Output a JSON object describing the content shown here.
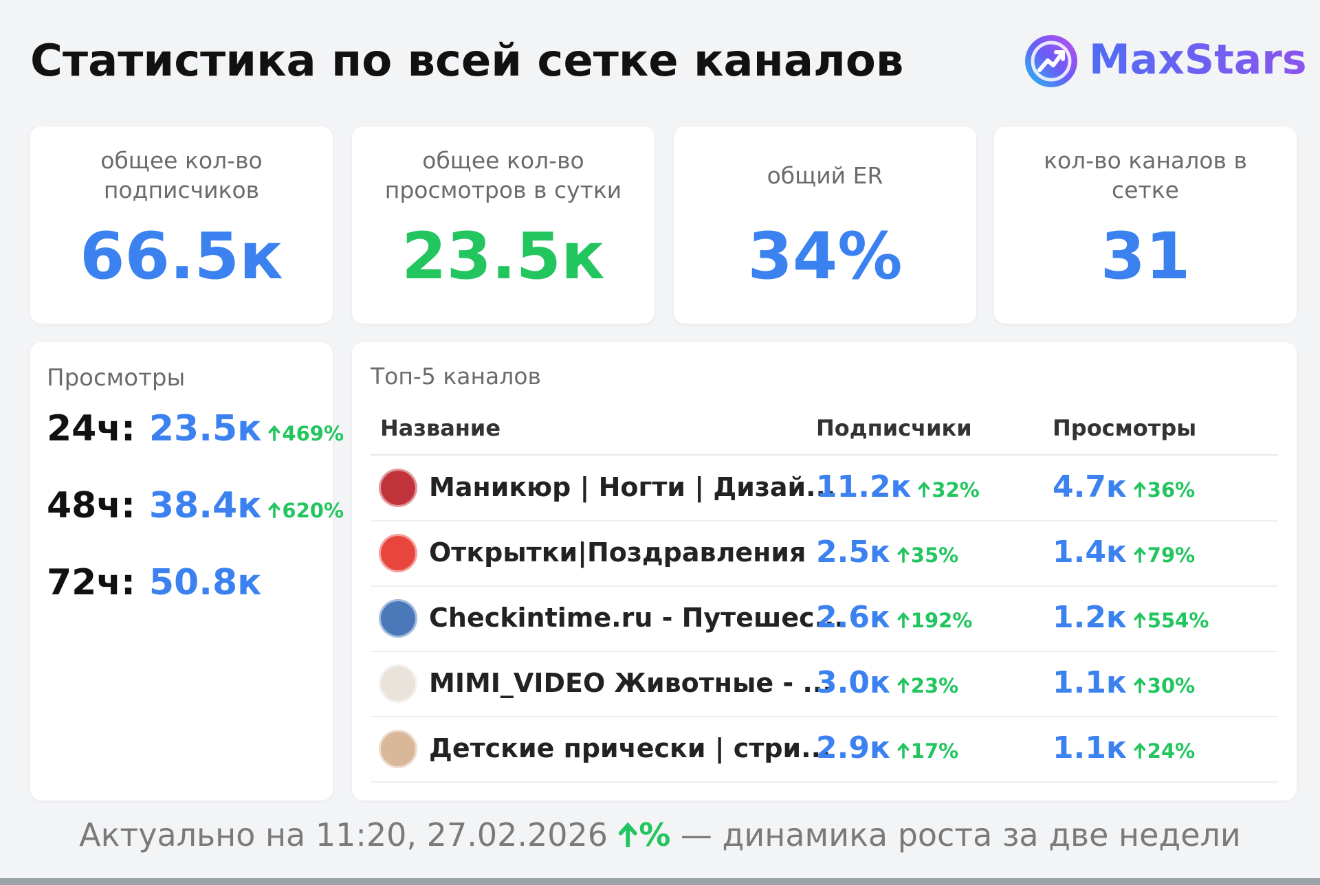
{
  "header": {
    "title": "Статистика по всей сетке каналов",
    "brand": "MaxStars"
  },
  "cards": [
    {
      "label": "общее кол-во подписчиков",
      "value": "66.5к"
    },
    {
      "label": "общее кол-во просмотров в сутки",
      "value": "23.5к"
    },
    {
      "label": "общий ER",
      "value": "34%"
    },
    {
      "label": "кол-во каналов в сетке",
      "value": "31"
    }
  ],
  "views": {
    "title": "Просмотры",
    "rows": [
      {
        "period": "24ч:",
        "value": "23.5к",
        "growth": "469%"
      },
      {
        "period": "48ч:",
        "value": "38.4к",
        "growth": "620%"
      },
      {
        "period": "72ч:",
        "value": "50.8к"
      }
    ]
  },
  "table": {
    "title": "Топ-5 каналов",
    "columns": [
      "Название",
      "Подписчики",
      "Просмотры"
    ],
    "rows": [
      {
        "name": "Маникюр | Ногти | Дизай...",
        "subscribers": "11.2к",
        "subscribers_growth": "32%",
        "views": "4.7к",
        "views_growth": "36%"
      },
      {
        "name": "Открытки|Поздравления",
        "subscribers": "2.5к",
        "subscribers_growth": "35%",
        "views": "1.4к",
        "views_growth": "79%"
      },
      {
        "name": "Checkintime.ru - Путешес...",
        "subscribers": "2.6к",
        "subscribers_growth": "192%",
        "views": "1.2к",
        "views_growth": "554%"
      },
      {
        "name": "MIMI_VIDEO Животные - ...",
        "subscribers": "3.0к",
        "subscribers_growth": "23%",
        "views": "1.1к",
        "views_growth": "30%"
      },
      {
        "name": "Детские прически | стри...",
        "subscribers": "2.9к",
        "subscribers_growth": "17%",
        "views": "1.1к",
        "views_growth": "24%"
      }
    ]
  },
  "footer": {
    "text": "Актуально на 11:20, 27.02.2026",
    "legend": "%",
    "note": "— динамика роста за две недели"
  }
}
